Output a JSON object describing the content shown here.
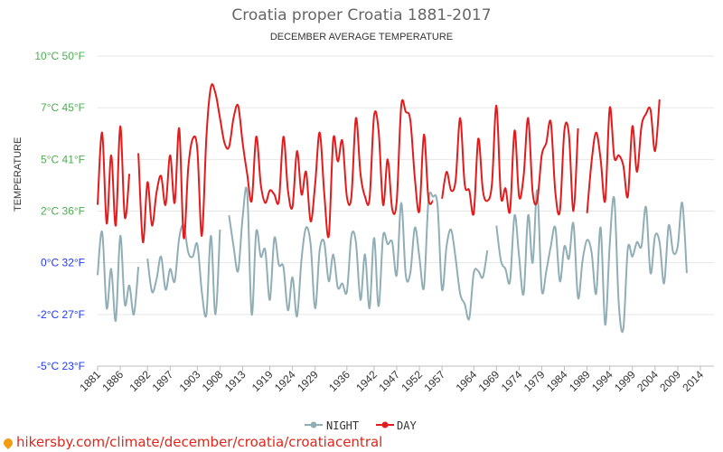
{
  "chart_data": {
    "type": "line",
    "title": "Croatia proper Croatia 1881-2017",
    "subtitle": "DECEMBER AVERAGE TEMPERATURE",
    "ylabel": "TEMPERATURE",
    "ylim": [
      -5,
      10
    ],
    "y_ticks": [
      {
        "value": 10,
        "label": "10°C 50°F",
        "color": "#4caf50"
      },
      {
        "value": 7.5,
        "label": "7°C 45°F",
        "color": "#4caf50"
      },
      {
        "value": 5,
        "label": "5°C 41°F",
        "color": "#4caf50"
      },
      {
        "value": 2.5,
        "label": "2°C 36°F",
        "color": "#4caf50"
      },
      {
        "value": 0,
        "label": "0°C 32°F",
        "color": "#1e3aff"
      },
      {
        "value": -2.5,
        "label": "-2°C 27°F",
        "color": "#1e3aff"
      },
      {
        "value": -5,
        "label": "-5°C 23°F",
        "color": "#1e3aff"
      }
    ],
    "x_range": [
      1881,
      2017
    ],
    "x_ticks": [
      1881,
      1886,
      1892,
      1897,
      1903,
      1908,
      1913,
      1919,
      1924,
      1929,
      1936,
      1942,
      1947,
      1952,
      1957,
      1964,
      1969,
      1974,
      1979,
      1984,
      1989,
      1994,
      1999,
      2004,
      2009,
      2014
    ],
    "grid": true,
    "legend_position": "bottom",
    "series": [
      {
        "name": "NIGHT",
        "color": "#90aeb5",
        "points": [
          [
            1881,
            -0.6
          ],
          [
            1882,
            1.5
          ],
          [
            1883,
            -2.2
          ],
          [
            1884,
            -0.3
          ],
          [
            1885,
            -2.8
          ],
          [
            1886,
            1.3
          ],
          [
            1887,
            -2.0
          ],
          [
            1888,
            -1.1
          ],
          [
            1889,
            -2.5
          ],
          [
            1890,
            -0.2
          ],
          [
            1892,
            0.2
          ],
          [
            1893,
            -1.4
          ],
          [
            1894,
            -0.8
          ],
          [
            1895,
            0.3
          ],
          [
            1896,
            -1.3
          ],
          [
            1897,
            -0.3
          ],
          [
            1898,
            -0.9
          ],
          [
            1899,
            1.2
          ],
          [
            1900,
            1.8
          ],
          [
            1901,
            0.5
          ],
          [
            1902,
            0.3
          ],
          [
            1903,
            0.9
          ],
          [
            1904,
            -1.4
          ],
          [
            1905,
            -2.5
          ],
          [
            1906,
            1.3
          ],
          [
            1907,
            -2.5
          ],
          [
            1908,
            1.6
          ],
          [
            1910,
            2.3
          ],
          [
            1911,
            0.8
          ],
          [
            1912,
            -0.4
          ],
          [
            1913,
            2.2
          ],
          [
            1914,
            3.4
          ],
          [
            1915,
            -2.5
          ],
          [
            1916,
            1.5
          ],
          [
            1917,
            0.3
          ],
          [
            1918,
            0.6
          ],
          [
            1919,
            -1.8
          ],
          [
            1920,
            1.2
          ],
          [
            1921,
            -0.1
          ],
          [
            1922,
            -0.2
          ],
          [
            1923,
            -2.3
          ],
          [
            1924,
            -0.7
          ],
          [
            1925,
            -2.6
          ],
          [
            1926,
            0.2
          ],
          [
            1927,
            1.7
          ],
          [
            1928,
            0.9
          ],
          [
            1929,
            -2.2
          ],
          [
            1930,
            0.6
          ],
          [
            1931,
            1.0
          ],
          [
            1932,
            -0.9
          ],
          [
            1933,
            0.4
          ],
          [
            1934,
            -1.2
          ],
          [
            1935,
            -1.0
          ],
          [
            1936,
            -1.4
          ],
          [
            1937,
            1.3
          ],
          [
            1938,
            1.0
          ],
          [
            1939,
            -1.8
          ],
          [
            1940,
            0.4
          ],
          [
            1941,
            -2.2
          ],
          [
            1942,
            1.2
          ],
          [
            1943,
            -2.1
          ],
          [
            1944,
            1.3
          ],
          [
            1945,
            0.9
          ],
          [
            1946,
            1.0
          ],
          [
            1947,
            -0.6
          ],
          [
            1948,
            2.9
          ],
          [
            1949,
            -0.6
          ],
          [
            1950,
            -0.5
          ],
          [
            1951,
            1.7
          ],
          [
            1952,
            0.3
          ],
          [
            1953,
            -1.2
          ],
          [
            1954,
            3.0
          ],
          [
            1955,
            3.2
          ],
          [
            1956,
            2.8
          ],
          [
            1957,
            -1.3
          ],
          [
            1958,
            0.8
          ],
          [
            1959,
            1.6
          ],
          [
            1960,
            0.2
          ],
          [
            1961,
            -1.5
          ],
          [
            1962,
            -2.0
          ],
          [
            1963,
            -2.7
          ],
          [
            1964,
            -0.5
          ],
          [
            1965,
            -0.4
          ],
          [
            1966,
            -0.7
          ],
          [
            1967,
            0.6
          ],
          [
            1969,
            1.8
          ],
          [
            1970,
            0.1
          ],
          [
            1971,
            -0.3
          ],
          [
            1972,
            -0.9
          ],
          [
            1973,
            2.3
          ],
          [
            1974,
            0.3
          ],
          [
            1975,
            -1.5
          ],
          [
            1976,
            2.3
          ],
          [
            1977,
            0.0
          ],
          [
            1978,
            3.5
          ],
          [
            1979,
            -1.3
          ],
          [
            1980,
            -0.4
          ],
          [
            1981,
            0.8
          ],
          [
            1982,
            1.7
          ],
          [
            1983,
            -0.9
          ],
          [
            1984,
            0.8
          ],
          [
            1985,
            0.2
          ],
          [
            1986,
            1.9
          ],
          [
            1987,
            -1.7
          ],
          [
            1988,
            0.1
          ],
          [
            1989,
            1.1
          ],
          [
            1990,
            0.5
          ],
          [
            1991,
            -1.5
          ],
          [
            1992,
            1.7
          ],
          [
            1993,
            -3.0
          ],
          [
            1994,
            0.9
          ],
          [
            1995,
            3.1
          ],
          [
            1996,
            -2.0
          ],
          [
            1997,
            -3.2
          ],
          [
            1998,
            0.7
          ],
          [
            1999,
            0.3
          ],
          [
            2000,
            1.0
          ],
          [
            2001,
            0.8
          ],
          [
            2002,
            2.7
          ],
          [
            2003,
            -0.5
          ],
          [
            2004,
            1.3
          ],
          [
            2005,
            1.0
          ],
          [
            2006,
            -1.0
          ],
          [
            2007,
            1.8
          ],
          [
            2008,
            0.5
          ],
          [
            2009,
            0.8
          ],
          [
            2010,
            2.9
          ],
          [
            2011,
            -0.5
          ]
        ]
      },
      {
        "name": "DAY",
        "color": "#e21c1c",
        "points": [
          [
            1881,
            2.8
          ],
          [
            1882,
            6.3
          ],
          [
            1883,
            1.9
          ],
          [
            1884,
            5.2
          ],
          [
            1885,
            1.8
          ],
          [
            1886,
            6.6
          ],
          [
            1887,
            2.2
          ],
          [
            1888,
            4.3
          ],
          [
            1890,
            5.3
          ],
          [
            1891,
            1.0
          ],
          [
            1892,
            3.9
          ],
          [
            1893,
            1.8
          ],
          [
            1894,
            3.4
          ],
          [
            1895,
            4.2
          ],
          [
            1896,
            2.8
          ],
          [
            1897,
            5.2
          ],
          [
            1898,
            2.9
          ],
          [
            1899,
            6.5
          ],
          [
            1900,
            1.2
          ],
          [
            1901,
            4.6
          ],
          [
            1902,
            6.0
          ],
          [
            1903,
            5.5
          ],
          [
            1904,
            1.3
          ],
          [
            1905,
            6.1
          ],
          [
            1906,
            8.5
          ],
          [
            1907,
            8.2
          ],
          [
            1908,
            7.0
          ],
          [
            1909,
            5.8
          ],
          [
            1910,
            5.6
          ],
          [
            1911,
            7.0
          ],
          [
            1912,
            7.6
          ],
          [
            1913,
            5.8
          ],
          [
            1914,
            4.3
          ],
          [
            1915,
            3.0
          ],
          [
            1916,
            6.1
          ],
          [
            1917,
            3.8
          ],
          [
            1918,
            2.9
          ],
          [
            1919,
            3.5
          ],
          [
            1920,
            3.3
          ],
          [
            1921,
            3.0
          ],
          [
            1922,
            6.1
          ],
          [
            1923,
            3.5
          ],
          [
            1924,
            2.7
          ],
          [
            1925,
            5.4
          ],
          [
            1926,
            3.3
          ],
          [
            1927,
            4.4
          ],
          [
            1928,
            2.0
          ],
          [
            1929,
            3.8
          ],
          [
            1930,
            6.3
          ],
          [
            1931,
            3.4
          ],
          [
            1932,
            1.3
          ],
          [
            1933,
            6.0
          ],
          [
            1934,
            4.9
          ],
          [
            1935,
            5.9
          ],
          [
            1936,
            3.2
          ],
          [
            1937,
            3.2
          ],
          [
            1938,
            7.0
          ],
          [
            1939,
            4.3
          ],
          [
            1940,
            3.2
          ],
          [
            1941,
            3.1
          ],
          [
            1942,
            7.1
          ],
          [
            1943,
            6.4
          ],
          [
            1944,
            2.8
          ],
          [
            1945,
            5.0
          ],
          [
            1946,
            2.6
          ],
          [
            1947,
            3.0
          ],
          [
            1948,
            7.6
          ],
          [
            1949,
            7.3
          ],
          [
            1950,
            6.9
          ],
          [
            1951,
            4.1
          ],
          [
            1952,
            2.5
          ],
          [
            1953,
            6.2
          ],
          [
            1954,
            3.1
          ],
          [
            1955,
            3.0
          ],
          [
            1957,
            3.1
          ],
          [
            1958,
            4.4
          ],
          [
            1959,
            3.5
          ],
          [
            1960,
            4.0
          ],
          [
            1961,
            7.0
          ],
          [
            1962,
            3.8
          ],
          [
            1963,
            3.5
          ],
          [
            1964,
            2.4
          ],
          [
            1965,
            6.0
          ],
          [
            1966,
            3.5
          ],
          [
            1967,
            3.0
          ],
          [
            1968,
            3.8
          ],
          [
            1969,
            7.6
          ],
          [
            1970,
            3.2
          ],
          [
            1971,
            3.6
          ],
          [
            1972,
            2.5
          ],
          [
            1973,
            6.4
          ],
          [
            1974,
            3.2
          ],
          [
            1975,
            4.2
          ],
          [
            1976,
            7.0
          ],
          [
            1977,
            3.4
          ],
          [
            1978,
            3.0
          ],
          [
            1979,
            5.2
          ],
          [
            1980,
            5.8
          ],
          [
            1981,
            6.8
          ],
          [
            1982,
            3.4
          ],
          [
            1983,
            2.5
          ],
          [
            1984,
            6.4
          ],
          [
            1985,
            6.2
          ],
          [
            1986,
            2.5
          ],
          [
            1987,
            6.5
          ],
          [
            1989,
            2.4
          ],
          [
            1990,
            4.9
          ],
          [
            1991,
            6.3
          ],
          [
            1992,
            5.0
          ],
          [
            1993,
            3.0
          ],
          [
            1994,
            7.5
          ],
          [
            1995,
            5.1
          ],
          [
            1996,
            5.2
          ],
          [
            1997,
            4.7
          ],
          [
            1998,
            3.2
          ],
          [
            1999,
            6.6
          ],
          [
            2000,
            4.4
          ],
          [
            2001,
            6.6
          ],
          [
            2002,
            7.2
          ],
          [
            2003,
            7.4
          ],
          [
            2004,
            5.4
          ],
          [
            2005,
            7.9
          ]
        ]
      }
    ]
  },
  "legend": {
    "night_label": "NIGHT",
    "day_label": "DAY"
  },
  "footer": {
    "url": "hikersby.com/climate/december/croatia/croatiacentral"
  }
}
